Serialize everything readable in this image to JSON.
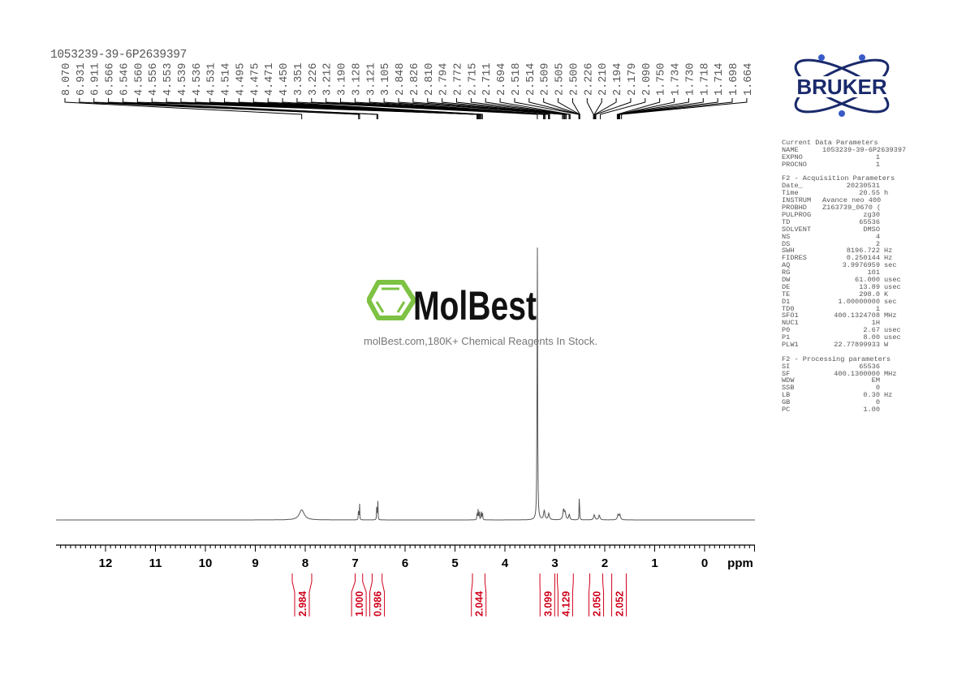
{
  "sample_name": "1053239-39-6P2639397",
  "watermark": {
    "logo_text": "MolBest",
    "tagline": "molBest.com,180K+ Chemical Reagents In Stock.",
    "color": "#7dc242"
  },
  "brand_logo": {
    "text": "BRUKER",
    "color": "#1a2a6c"
  },
  "parameters": [
    {
      "title": "Current Data Parameters",
      "rows": [
        {
          "k": "NAME",
          "v": "1053239-39-6P2639397",
          "u": ""
        },
        {
          "k": "EXPNO",
          "v": "1",
          "u": ""
        },
        {
          "k": "PROCNO",
          "v": "1",
          "u": ""
        }
      ]
    },
    {
      "title": "F2 - Acquisition Parameters",
      "rows": [
        {
          "k": "Date_",
          "v": "20230531",
          "u": ""
        },
        {
          "k": "Time",
          "v": "20.55",
          "u": "h"
        },
        {
          "k": "INSTRUM",
          "v": "Avance neo 400",
          "u": ""
        },
        {
          "k": "PROBHD",
          "v": "Z163739_0670 (",
          "u": ""
        },
        {
          "k": "PULPROG",
          "v": "zg30",
          "u": ""
        },
        {
          "k": "TD",
          "v": "65536",
          "u": ""
        },
        {
          "k": "SOLVENT",
          "v": "DMSO",
          "u": ""
        },
        {
          "k": "NS",
          "v": "4",
          "u": ""
        },
        {
          "k": "DS",
          "v": "2",
          "u": ""
        },
        {
          "k": "SWH",
          "v": "8196.722",
          "u": "Hz"
        },
        {
          "k": "FIDRES",
          "v": "0.250144",
          "u": "Hz"
        },
        {
          "k": "AQ",
          "v": "3.9976959",
          "u": "sec"
        },
        {
          "k": "RG",
          "v": "101",
          "u": ""
        },
        {
          "k": "DW",
          "v": "61.000",
          "u": "usec"
        },
        {
          "k": "DE",
          "v": "13.89",
          "u": "usec"
        },
        {
          "k": "TE",
          "v": "298.0",
          "u": "K"
        },
        {
          "k": "D1",
          "v": "1.00000000",
          "u": "sec"
        },
        {
          "k": "TD0",
          "v": "1",
          "u": ""
        },
        {
          "k": "SFO1",
          "v": "400.1324708",
          "u": "MHz"
        },
        {
          "k": "NUC1",
          "v": "1H",
          "u": ""
        },
        {
          "k": "P0",
          "v": "2.67",
          "u": "usec"
        },
        {
          "k": "P1",
          "v": "8.00",
          "u": "usec"
        },
        {
          "k": "PLW1",
          "v": "22.77899933",
          "u": "W"
        }
      ]
    },
    {
      "title": "F2 - Processing parameters",
      "rows": [
        {
          "k": "SI",
          "v": "65536",
          "u": ""
        },
        {
          "k": "SF",
          "v": "400.1300000",
          "u": "MHz"
        },
        {
          "k": "WDW",
          "v": "EM",
          "u": ""
        },
        {
          "k": "SSB",
          "v": "0",
          "u": ""
        },
        {
          "k": "LB",
          "v": "0.30",
          "u": "Hz"
        },
        {
          "k": "GB",
          "v": "0",
          "u": ""
        },
        {
          "k": "PC",
          "v": "1.00",
          "u": ""
        }
      ]
    }
  ],
  "chart_data": {
    "type": "line",
    "title": "",
    "xlabel": "ppm",
    "xlim": [
      13,
      -1
    ],
    "x_reversed": true,
    "x_ticks": [
      "12",
      "11",
      "10",
      "9",
      "8",
      "7",
      "6",
      "5",
      "4",
      "3",
      "2",
      "1",
      "0"
    ],
    "grid": false,
    "line_color": "#555555",
    "integral_color": "#d0021b",
    "peak_labels": [
      "8.070",
      "6.931",
      "6.911",
      "6.566",
      "6.546",
      "4.560",
      "4.556",
      "4.553",
      "4.539",
      "4.536",
      "4.531",
      "4.514",
      "4.495",
      "4.475",
      "4.471",
      "4.450",
      "3.351",
      "3.226",
      "3.212",
      "3.190",
      "3.128",
      "3.121",
      "3.105",
      "2.848",
      "2.826",
      "2.810",
      "2.794",
      "2.772",
      "2.715",
      "2.711",
      "2.694",
      "2.518",
      "2.514",
      "2.509",
      "2.505",
      "2.500",
      "2.226",
      "2.210",
      "2.194",
      "2.179",
      "2.090",
      "1.750",
      "1.734",
      "1.730",
      "1.718",
      "1.714",
      "1.698",
      "1.664"
    ],
    "peaks": [
      {
        "ppm": 8.07,
        "intensity": 0.035,
        "width": 0.06
      },
      {
        "ppm": 6.931,
        "intensity": 0.055,
        "width": 0.004
      },
      {
        "ppm": 6.911,
        "intensity": 0.055,
        "width": 0.004
      },
      {
        "ppm": 6.566,
        "intensity": 0.07,
        "width": 0.004
      },
      {
        "ppm": 6.546,
        "intensity": 0.07,
        "width": 0.004
      },
      {
        "ppm": 4.556,
        "intensity": 0.03,
        "width": 0.005
      },
      {
        "ppm": 4.536,
        "intensity": 0.035,
        "width": 0.005
      },
      {
        "ppm": 4.514,
        "intensity": 0.03,
        "width": 0.005
      },
      {
        "ppm": 4.475,
        "intensity": 0.04,
        "width": 0.005
      },
      {
        "ppm": 4.45,
        "intensity": 0.03,
        "width": 0.005
      },
      {
        "ppm": 3.351,
        "intensity": 1.0,
        "width": 0.006
      },
      {
        "ppm": 3.212,
        "intensity": 0.033,
        "width": 0.015
      },
      {
        "ppm": 3.121,
        "intensity": 0.022,
        "width": 0.015
      },
      {
        "ppm": 2.826,
        "intensity": 0.035,
        "width": 0.015
      },
      {
        "ppm": 2.794,
        "intensity": 0.025,
        "width": 0.015
      },
      {
        "ppm": 2.711,
        "intensity": 0.02,
        "width": 0.012
      },
      {
        "ppm": 2.509,
        "intensity": 0.12,
        "width": 0.004
      },
      {
        "ppm": 2.21,
        "intensity": 0.018,
        "width": 0.015
      },
      {
        "ppm": 2.11,
        "intensity": 0.017,
        "width": 0.015
      },
      {
        "ppm": 1.734,
        "intensity": 0.018,
        "width": 0.015
      },
      {
        "ppm": 1.698,
        "intensity": 0.018,
        "width": 0.015
      }
    ],
    "integrals": [
      {
        "from": 8.26,
        "to": 7.87,
        "value": "2.984"
      },
      {
        "from": 7.0,
        "to": 6.85,
        "value": "1.000"
      },
      {
        "from": 6.66,
        "to": 6.46,
        "value": "0.986"
      },
      {
        "from": 4.65,
        "to": 4.4,
        "value": "2.044"
      },
      {
        "from": 3.3,
        "to": 3.0,
        "value": "3.099"
      },
      {
        "from": 2.95,
        "to": 2.63,
        "value": "4.129"
      },
      {
        "from": 2.3,
        "to": 2.04,
        "value": "2.050"
      },
      {
        "from": 1.86,
        "to": 1.57,
        "value": "2.052"
      }
    ]
  }
}
